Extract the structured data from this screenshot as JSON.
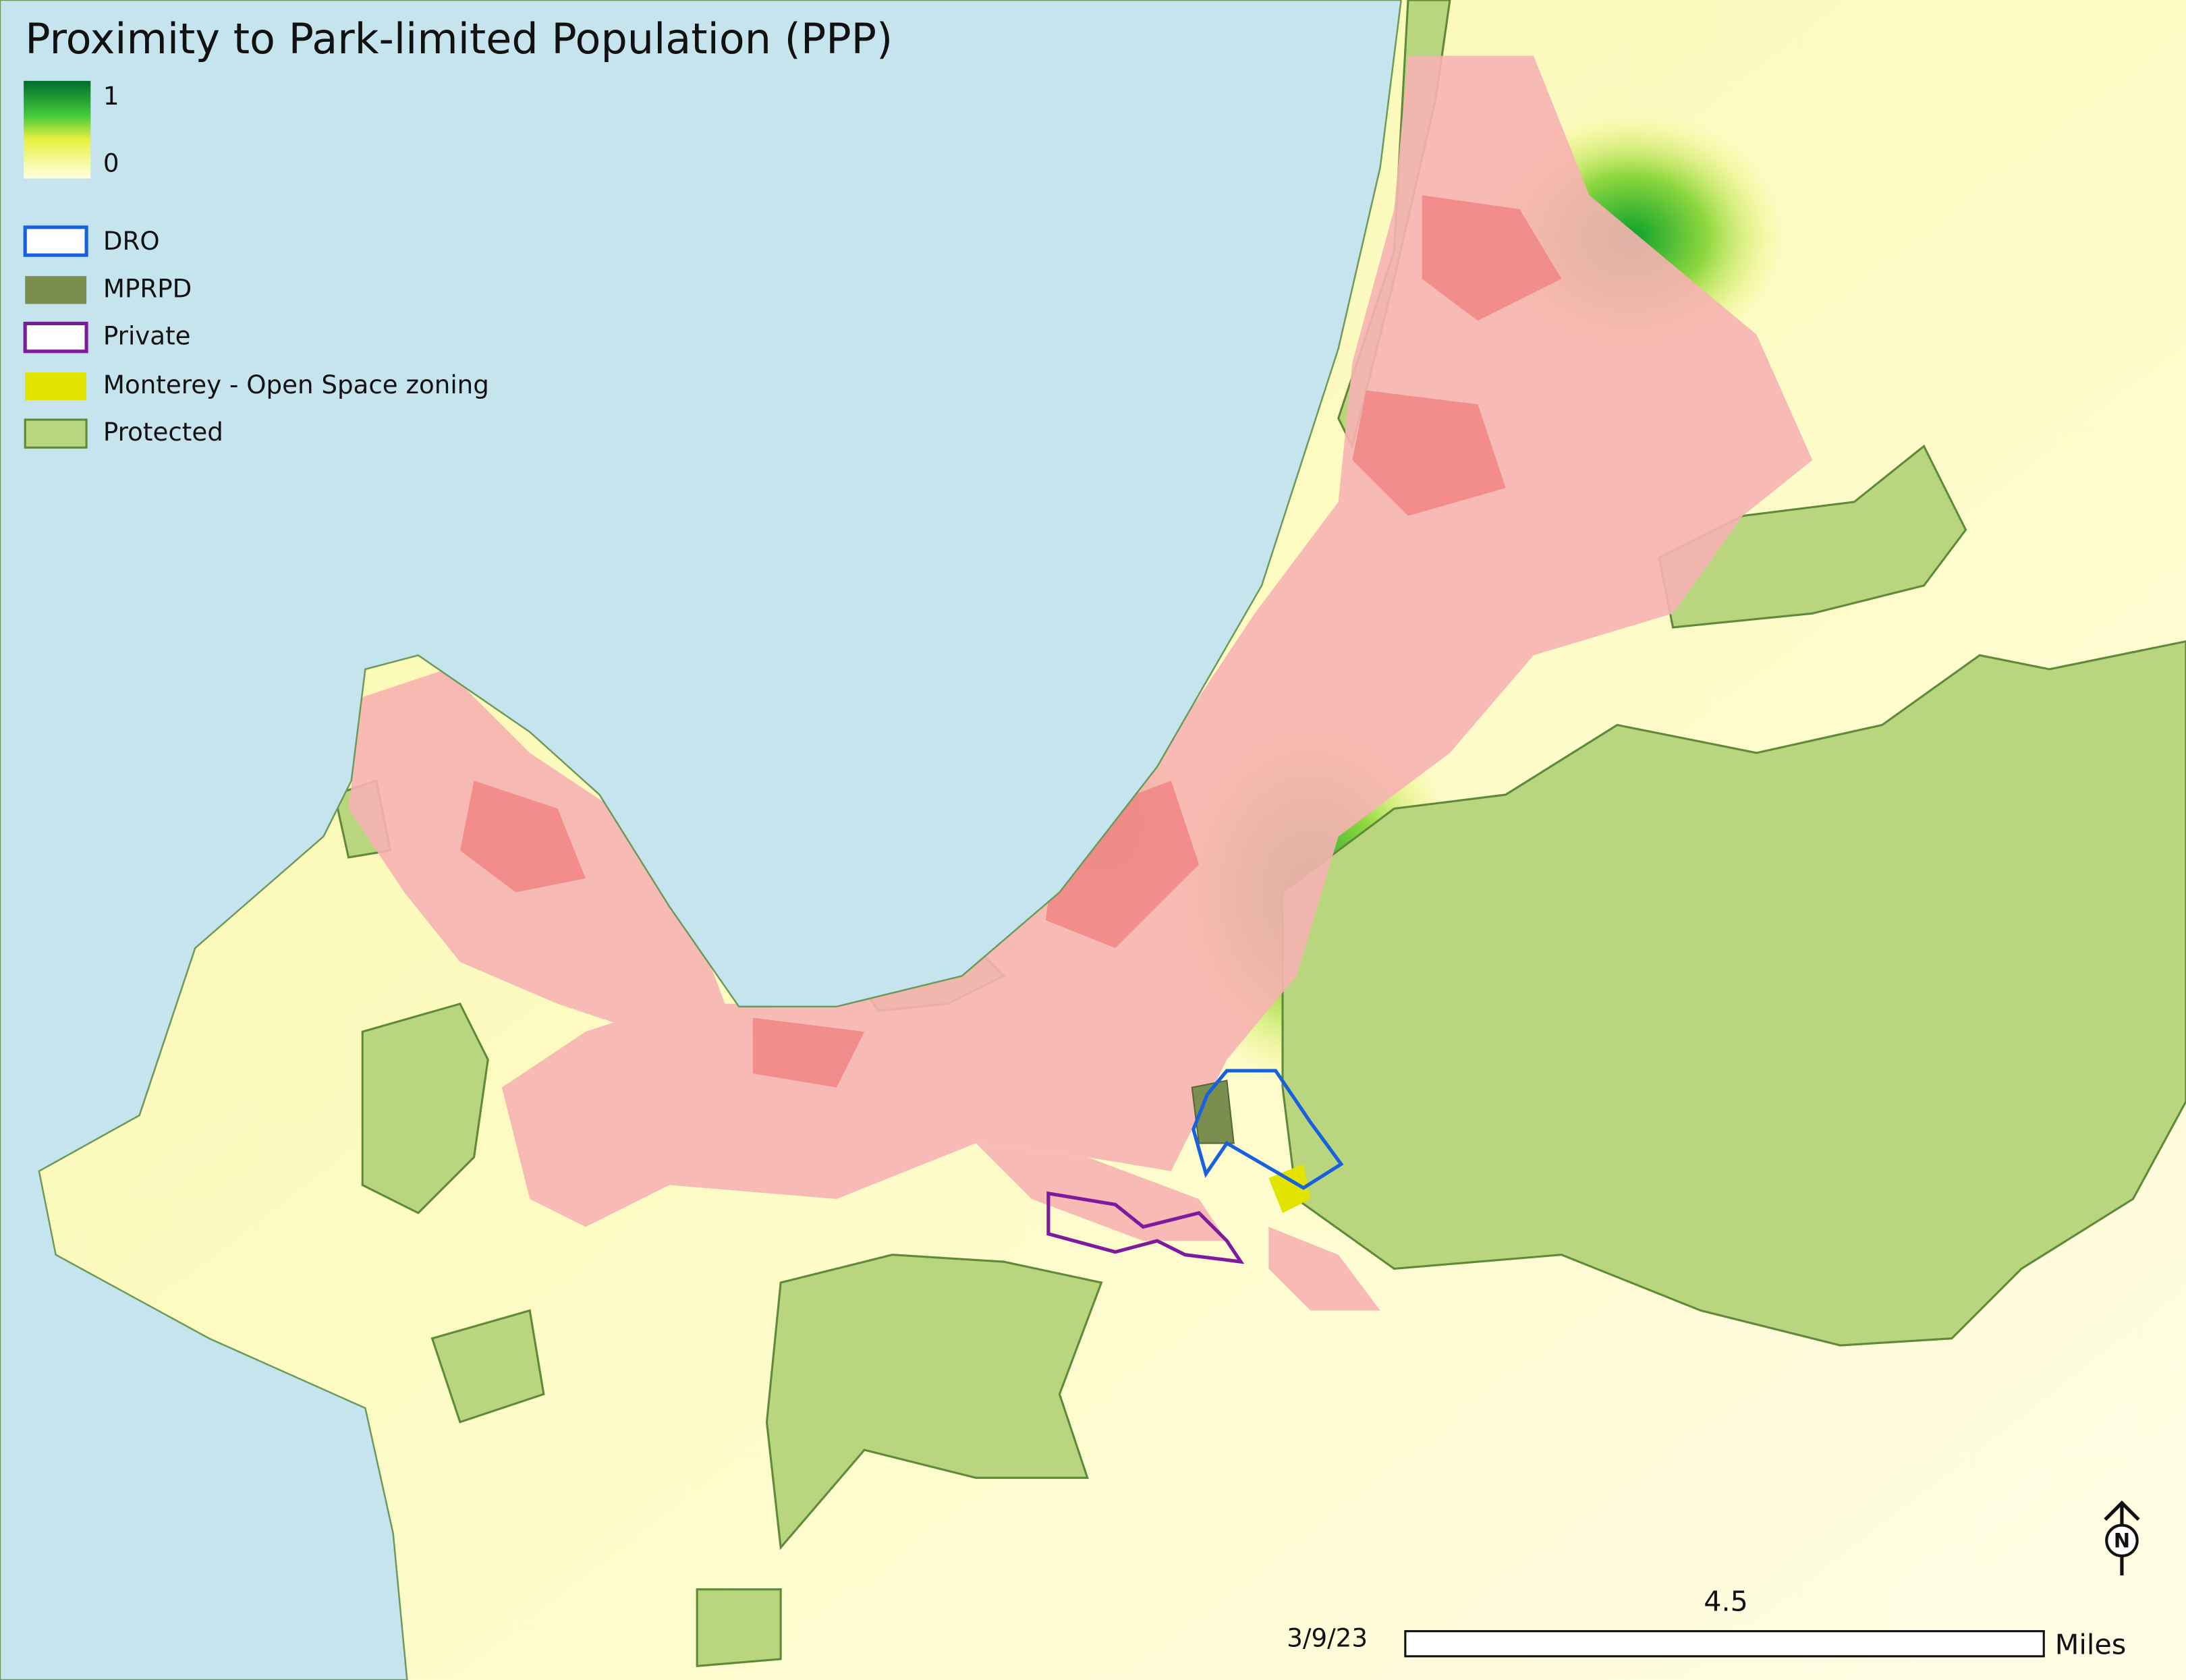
{
  "title": "Proximity to Park-limited Population (PPP)",
  "legend": {
    "ramp": {
      "max": 1,
      "min": 0
    },
    "items": [
      {
        "label": "DRO"
      },
      {
        "label": "MPRPD"
      },
      {
        "label": "Private"
      },
      {
        "label": "Monterey - Open Space zoning"
      },
      {
        "label": "Protected"
      }
    ]
  },
  "date": "3/9/23",
  "scale_bar": {
    "distance": 4.5,
    "unit": "Miles"
  },
  "north_arrow": "N"
}
